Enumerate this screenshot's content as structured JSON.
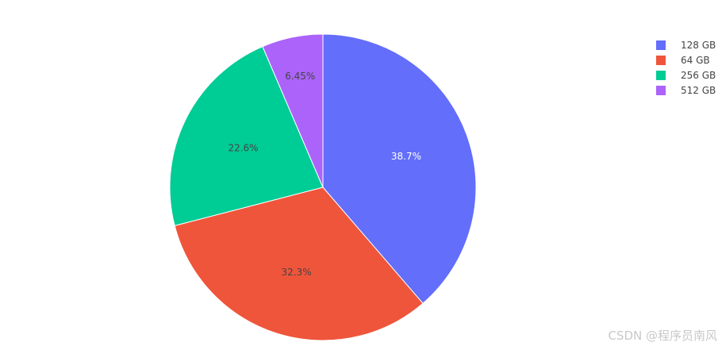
{
  "chart_data": {
    "type": "pie",
    "labels": [
      "128 GB",
      "64 GB",
      "256 GB",
      "512 GB"
    ],
    "values": [
      38.7,
      32.3,
      22.6,
      6.45
    ],
    "percent_labels": [
      "38.7%",
      "32.3%",
      "22.6%",
      "6.45%"
    ],
    "colors": [
      "#636efa",
      "#ef553b",
      "#00cc96",
      "#ab63fa"
    ],
    "label_colors": [
      "#ffffff",
      "#444444",
      "#444444",
      "#444444"
    ],
    "direction": "clockwise",
    "start": "top",
    "legend": {
      "placement": "top-right",
      "entries": [
        "128 GB",
        "64 GB",
        "256 GB",
        "512 GB"
      ]
    }
  },
  "watermark": {
    "text": "CSDN @程序员南风"
  }
}
